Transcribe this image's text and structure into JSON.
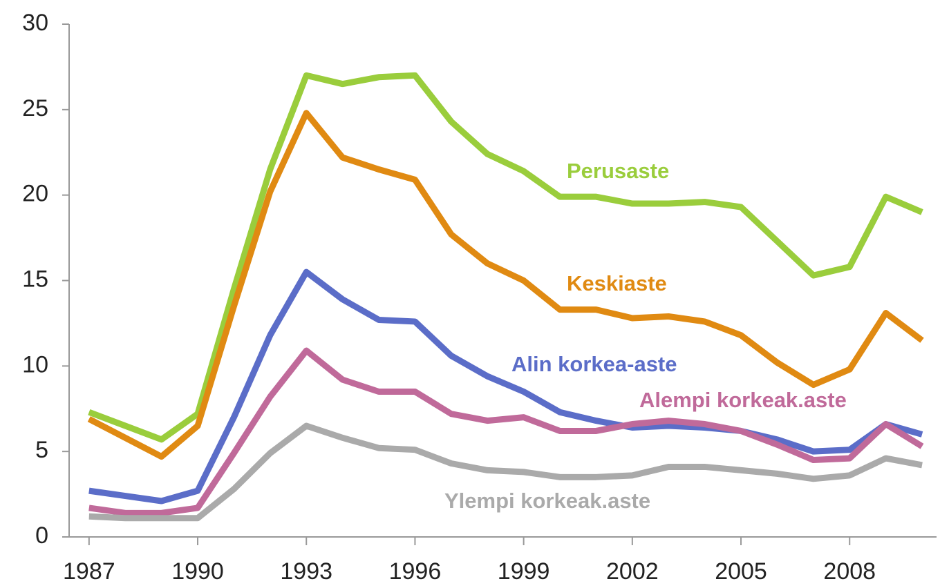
{
  "chart_data": {
    "type": "line",
    "x": [
      1987,
      1988,
      1989,
      1990,
      1991,
      1992,
      1993,
      1994,
      1995,
      1996,
      1997,
      1998,
      1999,
      2000,
      2001,
      2002,
      2003,
      2004,
      2005,
      2006,
      2007,
      2008,
      2009,
      2010
    ],
    "series": [
      {
        "name": "Perusaste",
        "color": "#9acd3c",
        "values": [
          7.3,
          6.5,
          5.7,
          7.2,
          14.5,
          21.5,
          27.0,
          26.5,
          26.9,
          27.0,
          24.3,
          22.4,
          21.4,
          19.9,
          19.9,
          19.5,
          19.5,
          19.6,
          19.3,
          17.3,
          15.3,
          15.8,
          19.9,
          19.0
        ]
      },
      {
        "name": "Keskiaste",
        "color": "#e08a12",
        "values": [
          6.9,
          5.8,
          4.7,
          6.5,
          13.5,
          20.2,
          24.8,
          22.2,
          21.5,
          20.9,
          17.7,
          16.0,
          15.0,
          13.3,
          13.3,
          12.8,
          12.9,
          12.6,
          11.8,
          10.2,
          8.9,
          9.8,
          13.1,
          11.5
        ]
      },
      {
        "name": "Alin korkea-aste",
        "color": "#5b6dc8",
        "values": [
          2.7,
          2.4,
          2.1,
          2.7,
          7.0,
          11.8,
          15.5,
          13.9,
          12.7,
          12.6,
          10.6,
          9.4,
          8.5,
          7.3,
          6.8,
          6.4,
          6.5,
          6.4,
          6.2,
          5.7,
          5.0,
          5.1,
          6.6,
          6.0
        ]
      },
      {
        "name": "Alempi korkeak.aste",
        "color": "#c06a9a",
        "values": [
          1.7,
          1.4,
          1.4,
          1.7,
          4.9,
          8.2,
          10.9,
          9.2,
          8.5,
          8.5,
          7.2,
          6.8,
          7.0,
          6.2,
          6.2,
          6.6,
          6.8,
          6.6,
          6.2,
          5.4,
          4.5,
          4.6,
          6.6,
          5.3
        ]
      },
      {
        "name": "Ylempi korkeak.aste",
        "color": "#aaaaaa",
        "values": [
          1.2,
          1.1,
          1.1,
          1.1,
          2.8,
          4.9,
          6.5,
          5.8,
          5.2,
          5.1,
          4.3,
          3.9,
          3.8,
          3.5,
          3.5,
          3.6,
          4.1,
          4.1,
          3.9,
          3.7,
          3.4,
          3.6,
          4.6,
          4.2
        ]
      }
    ],
    "xlim": [
      1986.45,
      2010.4
    ],
    "xticks": [
      1987,
      1990,
      1993,
      1996,
      1999,
      2002,
      2005,
      2008
    ],
    "ylim": [
      0,
      30
    ],
    "yticks": [
      0,
      5,
      10,
      15,
      20,
      25,
      30
    ]
  }
}
